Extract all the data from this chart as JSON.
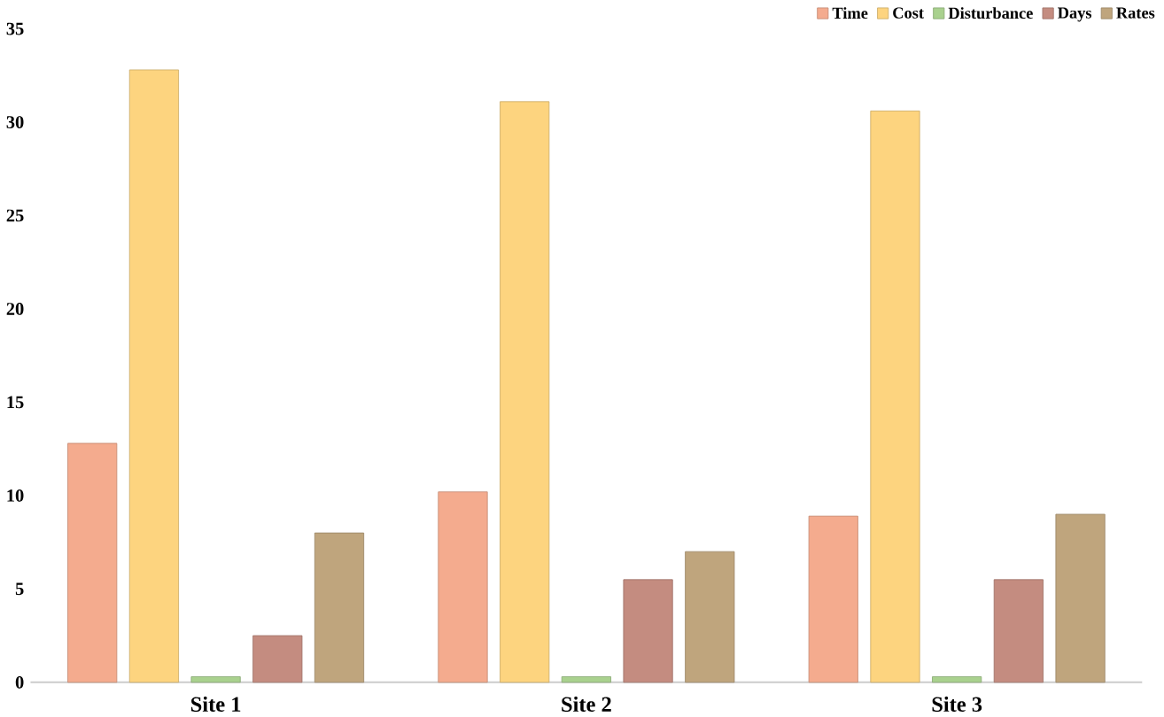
{
  "chart_data": {
    "type": "bar",
    "categories": [
      "Site 1",
      "Site 2",
      "Site 3"
    ],
    "series": [
      {
        "name": "Time",
        "color": "#f4ab8e",
        "values": [
          12.8,
          10.2,
          8.9
        ]
      },
      {
        "name": "Cost",
        "color": "#fdd47f",
        "values": [
          32.8,
          31.1,
          30.6
        ]
      },
      {
        "name": "Disturbance",
        "color": "#a9d18e",
        "values": [
          0.3,
          0.3,
          0.3
        ]
      },
      {
        "name": "Days",
        "color": "#c48c80",
        "values": [
          2.5,
          5.5,
          5.5
        ]
      },
      {
        "name": "Rates",
        "color": "#bfa57d",
        "values": [
          8.0,
          7.0,
          9.0
        ]
      }
    ],
    "ylim": [
      0,
      35
    ],
    "yticks": [
      0,
      5,
      10,
      15,
      20,
      25,
      30,
      35
    ],
    "legend": "top right"
  }
}
